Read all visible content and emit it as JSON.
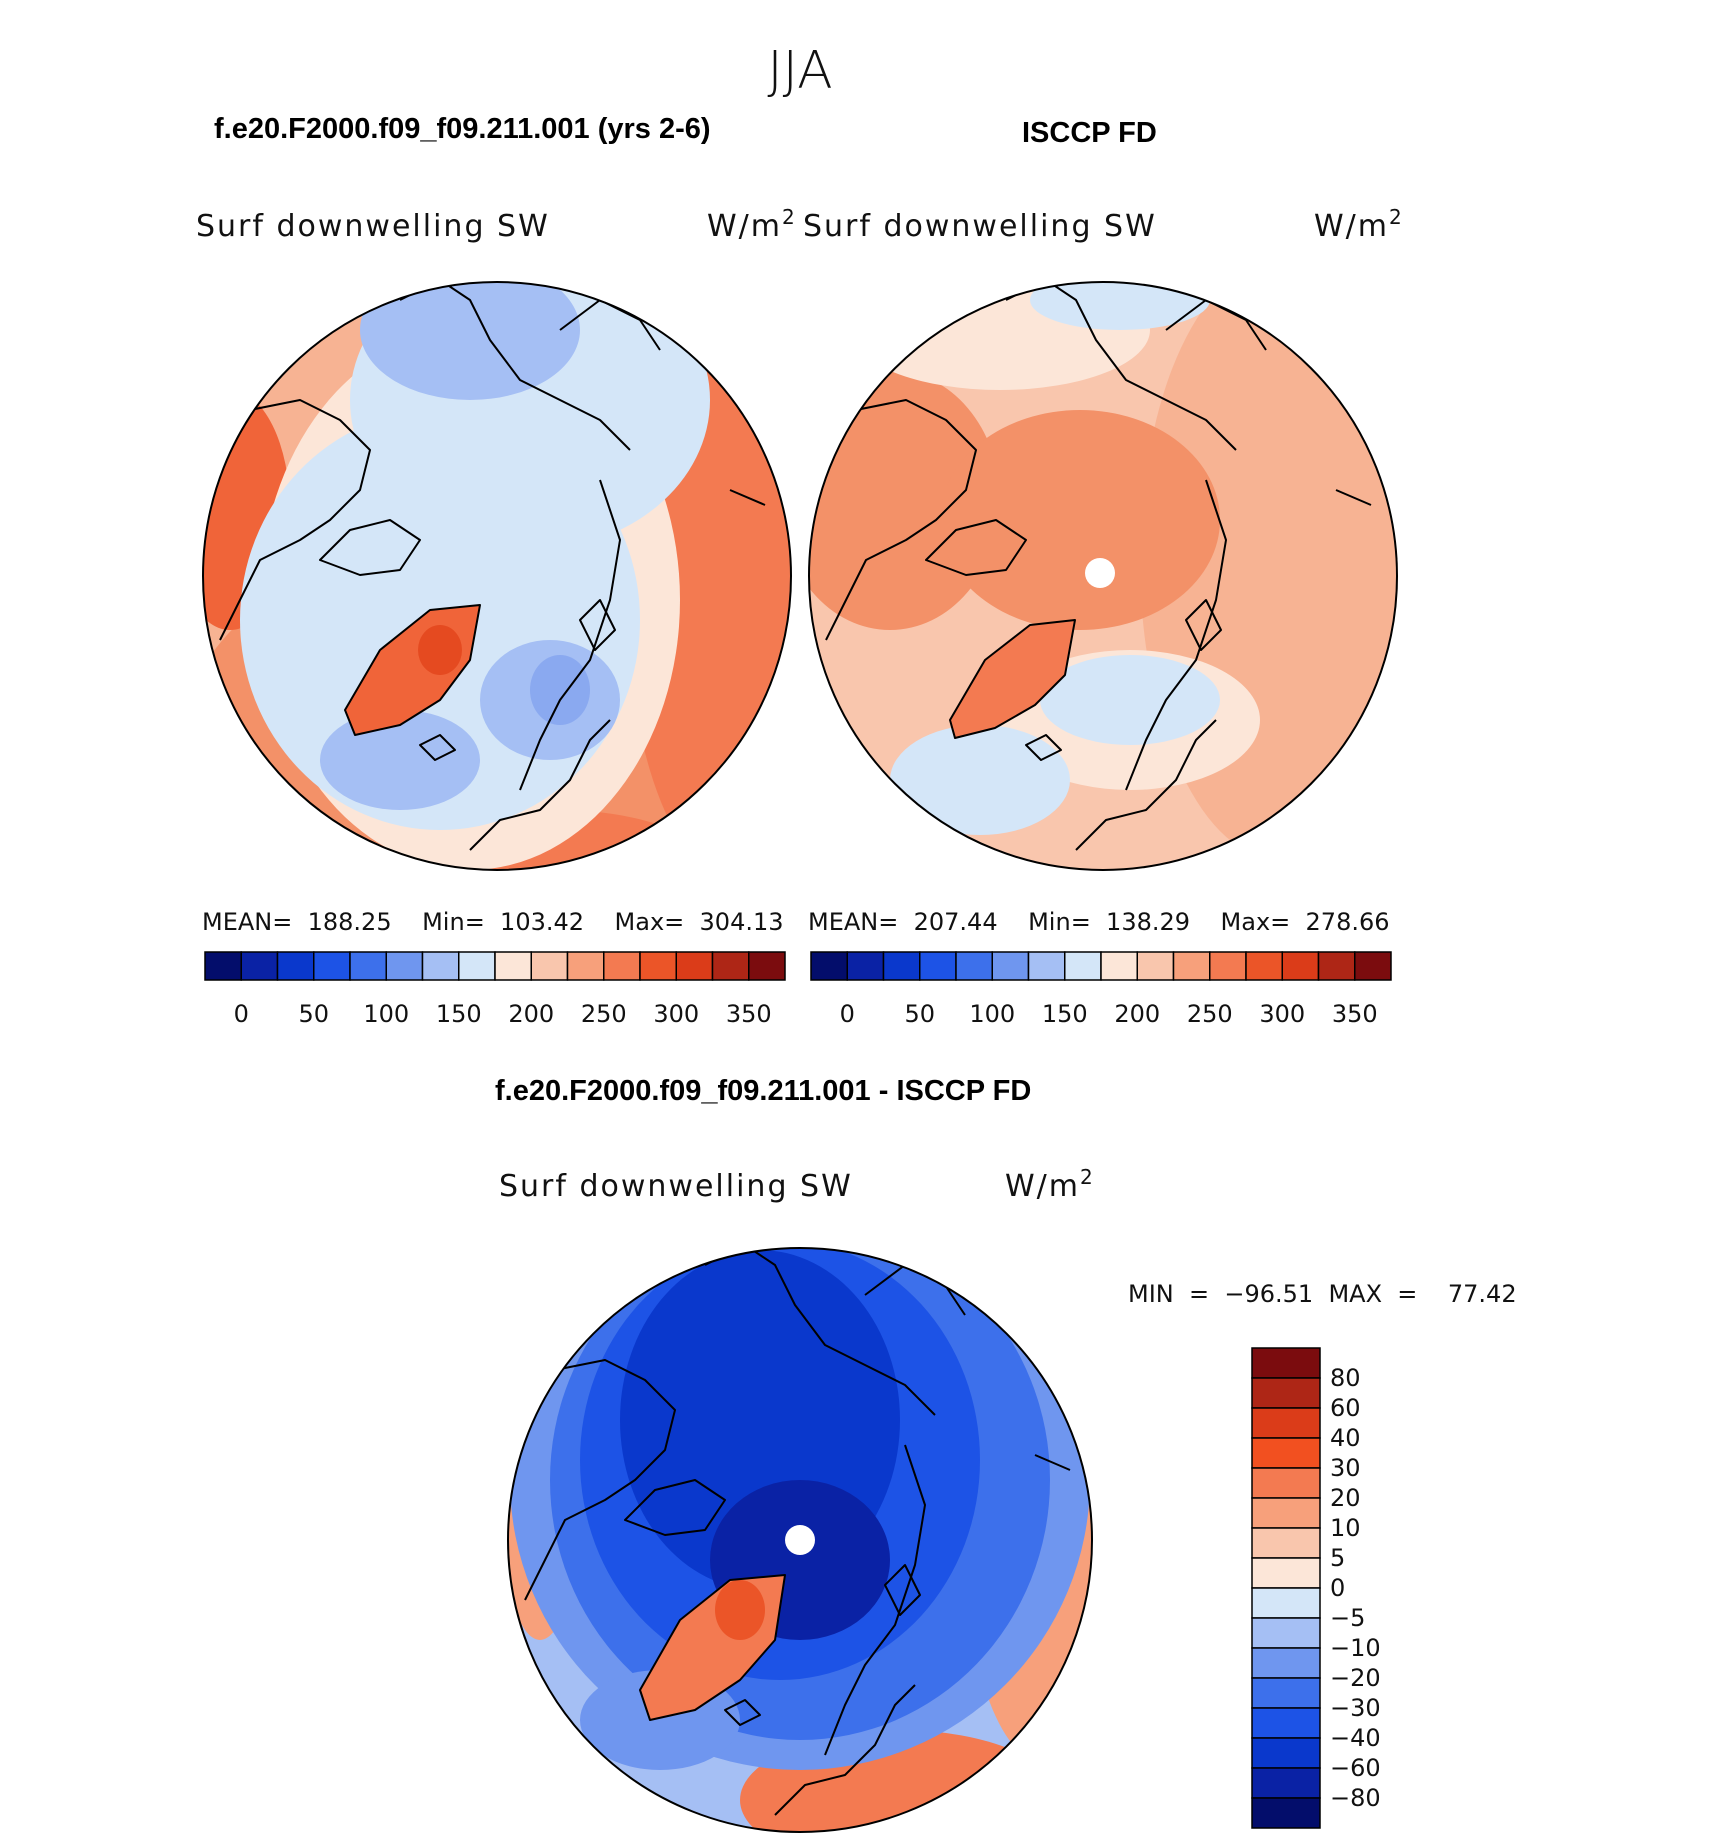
{
  "suptitle": "JJA",
  "top_left": {
    "case_title": "f.e20.F2000.f09_f09.211.001 (yrs 2-6)",
    "variable": "Surf downwelling SW",
    "units": "W/m",
    "units_exp": "2",
    "stats_text": "MEAN=  188.25    Min=  103.42    Max=  304.13"
  },
  "top_right": {
    "case_title": "ISCCP FD",
    "variable": "Surf downwelling SW",
    "units": "W/m",
    "units_exp": "2",
    "stats_text": "MEAN=  207.44    Min=  138.29    Max=  278.66"
  },
  "diff": {
    "case_title": "f.e20.F2000.f09_f09.211.001 - ISCCP FD",
    "variable": "Surf downwelling SW",
    "units": "W/m",
    "units_exp": "2",
    "minmax_text": "MIN  =  −96.51  MAX  =    77.42"
  },
  "abs_colorbar": {
    "colors": [
      "#030d6b",
      "#0a22a5",
      "#0a38cc",
      "#1d53e6",
      "#3d70eb",
      "#6f96ef",
      "#a5bff4",
      "#d4e6f8",
      "#fce6d8",
      "#f9c6ad",
      "#f7a07b",
      "#f37a51",
      "#eb5528",
      "#db3c19",
      "#ae2616",
      "#7b0c0e"
    ],
    "tick_labels": [
      "0",
      "50",
      "100",
      "150",
      "200",
      "250",
      "300",
      "350"
    ]
  },
  "diff_colorbar": {
    "colors": [
      "#7b0c0e",
      "#ae2616",
      "#db3c19",
      "#f25020",
      "#f37a51",
      "#f7a07b",
      "#f9c6ad",
      "#fce6d8",
      "#d4e6f8",
      "#a5bff4",
      "#6f96ef",
      "#3d70eb",
      "#1d53e6",
      "#0a38cc",
      "#0a22a5",
      "#030d6b"
    ],
    "tick_labels": [
      "80",
      "60",
      "40",
      "30",
      "20",
      "10",
      "5",
      "0",
      "−5",
      "−10",
      "−20",
      "−30",
      "−40",
      "−60",
      "−80"
    ]
  },
  "chart_data": [
    {
      "type": "heatmap",
      "title": "f.e20.F2000.f09_f09.211.001 (yrs 2-6)",
      "variable": "Surf downwelling SW",
      "units": "W/m2",
      "mean": 188.25,
      "min": 103.42,
      "max": 304.13,
      "levels": [
        0,
        25,
        50,
        75,
        100,
        125,
        150,
        175,
        200,
        225,
        250,
        275,
        300,
        325,
        350
      ]
    },
    {
      "type": "heatmap",
      "title": "ISCCP FD",
      "variable": "Surf downwelling SW",
      "units": "W/m2",
      "mean": 207.44,
      "min": 138.29,
      "max": 278.66,
      "levels": [
        0,
        25,
        50,
        75,
        100,
        125,
        150,
        175,
        200,
        225,
        250,
        275,
        300,
        325,
        350
      ]
    },
    {
      "type": "heatmap",
      "title": "f.e20.F2000.f09_f09.211.001 - ISCCP FD",
      "variable": "Surf downwelling SW",
      "units": "W/m2",
      "min": -96.51,
      "max": 77.42,
      "levels": [
        -80,
        -60,
        -40,
        -30,
        -20,
        -10,
        -5,
        0,
        5,
        10,
        20,
        30,
        40,
        60,
        80
      ]
    }
  ]
}
